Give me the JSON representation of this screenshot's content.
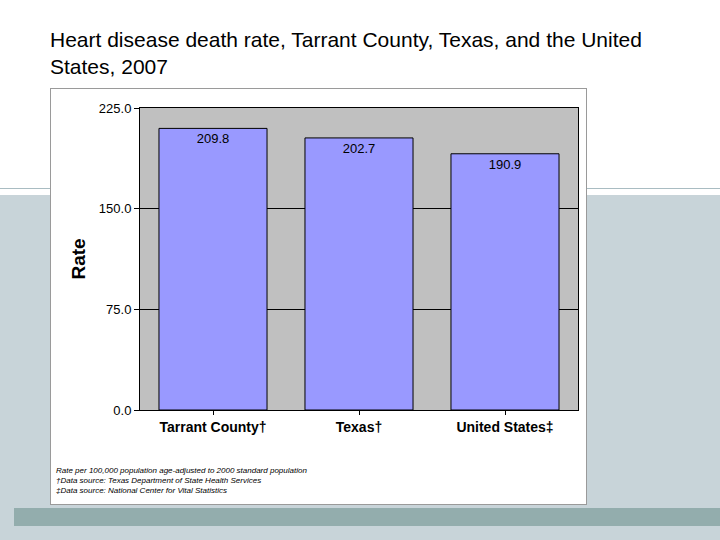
{
  "chart_data": {
    "type": "bar",
    "title": "Heart disease death rate, Tarrant County, Texas, and the United States, 2007",
    "ylabel": "Rate",
    "categories": [
      "Tarrant County†",
      "Texas†",
      "United States‡"
    ],
    "values": [
      209.8,
      202.7,
      190.9
    ],
    "color": "#9999ff",
    "ylim": [
      0,
      225
    ],
    "yticks": [
      {
        "value": 0,
        "label": "0.0"
      },
      {
        "value": 75,
        "label": "75.0"
      },
      {
        "value": 150,
        "label": "150.0"
      },
      {
        "value": 225,
        "label": "225.0"
      }
    ],
    "grid": true,
    "data_labels": true,
    "annotations": [
      "Rate per 100,000 population age-adjusted to 2000 standard population",
      "†Data source: Texas Department of State Health Services",
      "‡Data source: National Center for Vital Statistics"
    ]
  }
}
